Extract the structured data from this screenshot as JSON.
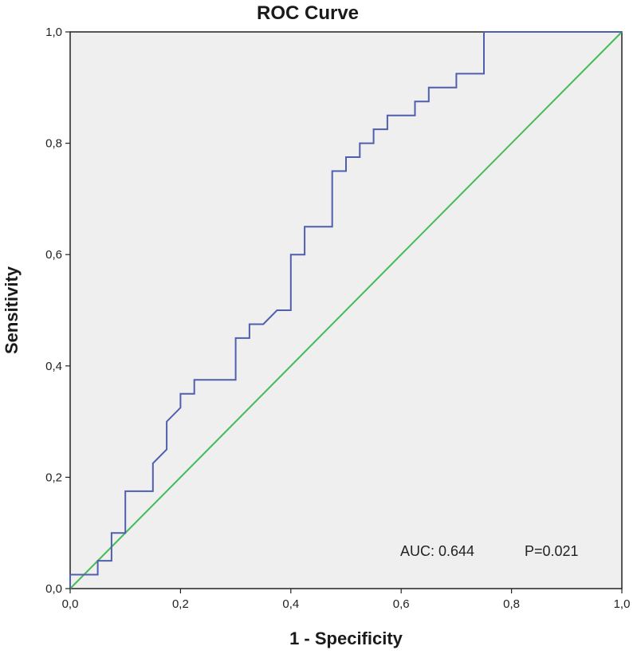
{
  "chart_data": {
    "type": "line",
    "title": "ROC Curve",
    "xlabel": "1 - Specificity",
    "ylabel": "Sensitivity",
    "xlim": [
      0,
      1
    ],
    "ylim": [
      0,
      1
    ],
    "x_ticks": [
      0,
      0.2,
      0.4,
      0.6,
      0.8,
      1.0
    ],
    "y_ticks": [
      0,
      0.2,
      0.4,
      0.6,
      0.8,
      1.0
    ],
    "x_tick_labels": [
      "0,0",
      "0,2",
      "0,4",
      "0,6",
      "0,8",
      "1,0"
    ],
    "y_tick_labels": [
      "0,0",
      "0,2",
      "0,4",
      "0,6",
      "0,8",
      "1,0"
    ],
    "grid": false,
    "legend": "none",
    "series": [
      {
        "name": "ROC",
        "color": "#4f5fae",
        "x": [
          0,
          0,
          0.05,
          0.05,
          0.075,
          0.075,
          0.1,
          0.1,
          0.15,
          0.15,
          0.175,
          0.175,
          0.2,
          0.2,
          0.225,
          0.225,
          0.3,
          0.3,
          0.325,
          0.325,
          0.35,
          0.375,
          0.4,
          0.4,
          0.425,
          0.425,
          0.475,
          0.475,
          0.5,
          0.5,
          0.525,
          0.525,
          0.55,
          0.55,
          0.575,
          0.575,
          0.625,
          0.625,
          0.65,
          0.65,
          0.7,
          0.7,
          0.75,
          0.75,
          1.0
        ],
        "y": [
          0,
          0.025,
          0.025,
          0.05,
          0.05,
          0.1,
          0.1,
          0.175,
          0.175,
          0.225,
          0.25,
          0.3,
          0.325,
          0.35,
          0.35,
          0.375,
          0.375,
          0.45,
          0.45,
          0.475,
          0.475,
          0.5,
          0.5,
          0.6,
          0.6,
          0.65,
          0.65,
          0.75,
          0.75,
          0.775,
          0.775,
          0.8,
          0.8,
          0.825,
          0.825,
          0.85,
          0.85,
          0.875,
          0.875,
          0.9,
          0.9,
          0.925,
          0.925,
          1.0,
          1.0
        ]
      },
      {
        "name": "Reference line",
        "color": "#44bb55",
        "x": [
          0,
          1
        ],
        "y": [
          0,
          1
        ]
      }
    ],
    "annotations": {
      "auc": "AUC: 0.644",
      "p": "P=0.021"
    },
    "colors": {
      "plot_background": "#efefef",
      "axis": "#222222"
    }
  }
}
